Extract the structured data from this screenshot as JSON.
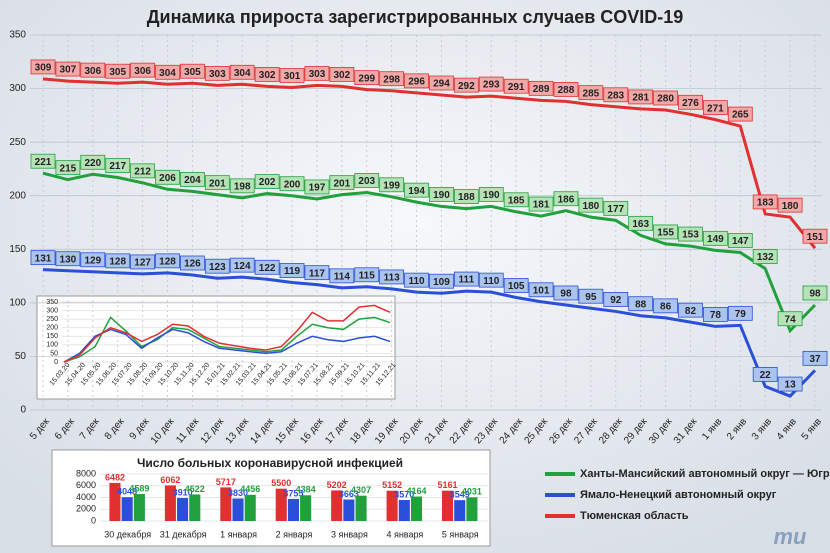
{
  "chart_data": [
    {
      "type": "line",
      "title": "Динамика прироста зарегистрированных случаев COVID-19",
      "categories": [
        "5 дек",
        "6 дек",
        "7 дек",
        "8 дек",
        "9 дек",
        "10 дек",
        "11 дек",
        "12 дек",
        "13 дек",
        "14 дек",
        "15 дек",
        "16 дек",
        "17 дек",
        "18 дек",
        "19 дек",
        "20 дек",
        "21 дек",
        "22 дек",
        "23 дек",
        "24 дек",
        "25 дек",
        "26 дек",
        "27 дек",
        "28 дек",
        "29 дек",
        "30 дек",
        "31 дек",
        "1 янв",
        "2 янв",
        "3 янв",
        "4 янв",
        "5 янв"
      ],
      "series": [
        {
          "name": "Ханты-Мансийский автономный округ — Югра",
          "color": "#22a03c",
          "values": [
            221,
            215,
            220,
            217,
            212,
            206,
            204,
            201,
            198,
            202,
            200,
            197,
            201,
            203,
            199,
            194,
            190,
            188,
            190,
            185,
            181,
            186,
            180,
            177,
            163,
            155,
            153,
            149,
            147,
            132,
            74,
            98
          ]
        },
        {
          "name": "Ямало-Ненецкий автономный округ",
          "color": "#2a4fd8",
          "values": [
            131,
            130,
            129,
            128,
            127,
            128,
            126,
            123,
            124,
            122,
            119,
            117,
            114,
            115,
            113,
            110,
            109,
            111,
            110,
            105,
            101,
            98,
            95,
            92,
            88,
            86,
            82,
            78,
            79,
            22,
            13,
            37
          ]
        },
        {
          "name": "Тюменская область",
          "color": "#e03030",
          "values": [
            309,
            307,
            306,
            305,
            306,
            304,
            305,
            303,
            304,
            302,
            301,
            303,
            302,
            299,
            298,
            296,
            294,
            292,
            293,
            291,
            289,
            288,
            285,
            283,
            281,
            280,
            276,
            271,
            265,
            183,
            180,
            151
          ]
        }
      ],
      "ylim": [
        0,
        350
      ],
      "yticks": [
        0,
        50,
        100,
        150,
        200,
        250,
        300,
        350
      ],
      "grid": true,
      "legend": "bottom-right"
    },
    {
      "type": "line",
      "categories": [
        "15.03.20",
        "15.04.20",
        "15.05.20",
        "15.06.20",
        "15.07.20",
        "15.08.20",
        "15.09.20",
        "15.10.20",
        "15.11.20",
        "15.12.20",
        "15.01.21",
        "15.02.21",
        "15.03.21",
        "15.04.21",
        "15.05.21",
        "15.06.21",
        "15.07.21",
        "15.08.21",
        "15.09.21",
        "15.10.21",
        "15.11.21",
        "15.12.21"
      ],
      "series": [
        {
          "color": "#22a03c",
          "values": [
            0,
            30,
            90,
            260,
            180,
            90,
            130,
            200,
            190,
            140,
            90,
            80,
            70,
            60,
            70,
            150,
            220,
            200,
            190,
            250,
            260,
            230
          ]
        },
        {
          "color": "#2a4fd8",
          "values": [
            0,
            50,
            150,
            190,
            160,
            80,
            140,
            190,
            170,
            120,
            80,
            70,
            60,
            50,
            60,
            110,
            150,
            130,
            120,
            140,
            150,
            120
          ]
        },
        {
          "color": "#e03030",
          "values": [
            0,
            40,
            140,
            200,
            170,
            120,
            160,
            220,
            210,
            150,
            110,
            95,
            80,
            70,
            90,
            180,
            290,
            240,
            240,
            320,
            330,
            290
          ]
        }
      ],
      "ylim": [
        0,
        350
      ],
      "yticks": [
        0,
        50,
        100,
        150,
        200,
        250,
        300,
        350
      ]
    },
    {
      "type": "bar",
      "title": "Число больных коронавирусной инфекцией",
      "categories": [
        "30 декабря",
        "31 декабря",
        "1 января",
        "2 января",
        "3 января",
        "4 января",
        "5 января"
      ],
      "series": [
        {
          "color": "#e03030",
          "values": [
            6482,
            6062,
            5717,
            5500,
            5202,
            5152,
            5161
          ]
        },
        {
          "color": "#2a4fd8",
          "values": [
            4048,
            3910,
            3830,
            3755,
            3663,
            3570,
            3549
          ]
        },
        {
          "color": "#22a03c",
          "values": [
            4589,
            4522,
            4456,
            4384,
            4307,
            4164,
            4031
          ]
        }
      ],
      "ylim": [
        0,
        8000
      ],
      "yticks": [
        0,
        2000,
        4000,
        6000,
        8000
      ]
    }
  ],
  "logo": "mu"
}
